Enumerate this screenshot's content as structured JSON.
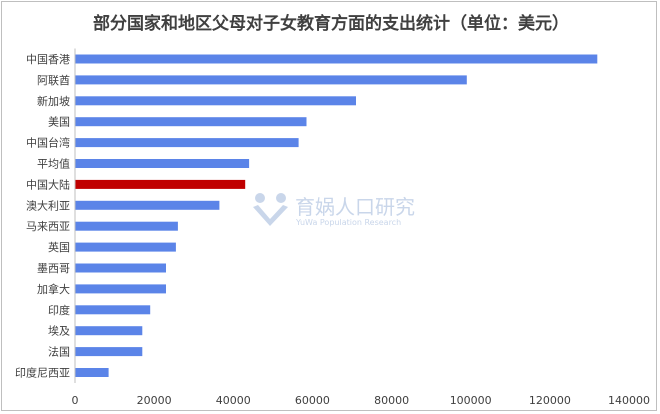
{
  "chart_data": {
    "type": "bar",
    "orientation": "horizontal",
    "title": "部分国家和地区父母对子女教育方面的支出统计（单位：美元）",
    "categories": [
      "中国香港",
      "阿联酋",
      "新加坡",
      "美国",
      "中国台湾",
      "平均值",
      "中国大陆",
      "澳大利亚",
      "马来西亚",
      "英国",
      "墨西哥",
      "加拿大",
      "印度",
      "埃及",
      "法国",
      "印度尼西亚"
    ],
    "values": [
      132000,
      99000,
      71000,
      58500,
      56500,
      44000,
      43000,
      36500,
      26000,
      25500,
      23000,
      23000,
      19000,
      17000,
      17000,
      8500
    ],
    "highlight_category": "中国大陆",
    "bar_color": "#5b84e8",
    "highlight_color": "#c00000",
    "xlim": [
      0,
      140000
    ],
    "xticks": [
      0,
      20000,
      40000,
      60000,
      80000,
      100000,
      120000,
      140000
    ],
    "grid": false
  },
  "watermark": {
    "name": "育娲人口研究",
    "subtitle": "YuWa Population Research",
    "color": "#c9d6ea"
  }
}
